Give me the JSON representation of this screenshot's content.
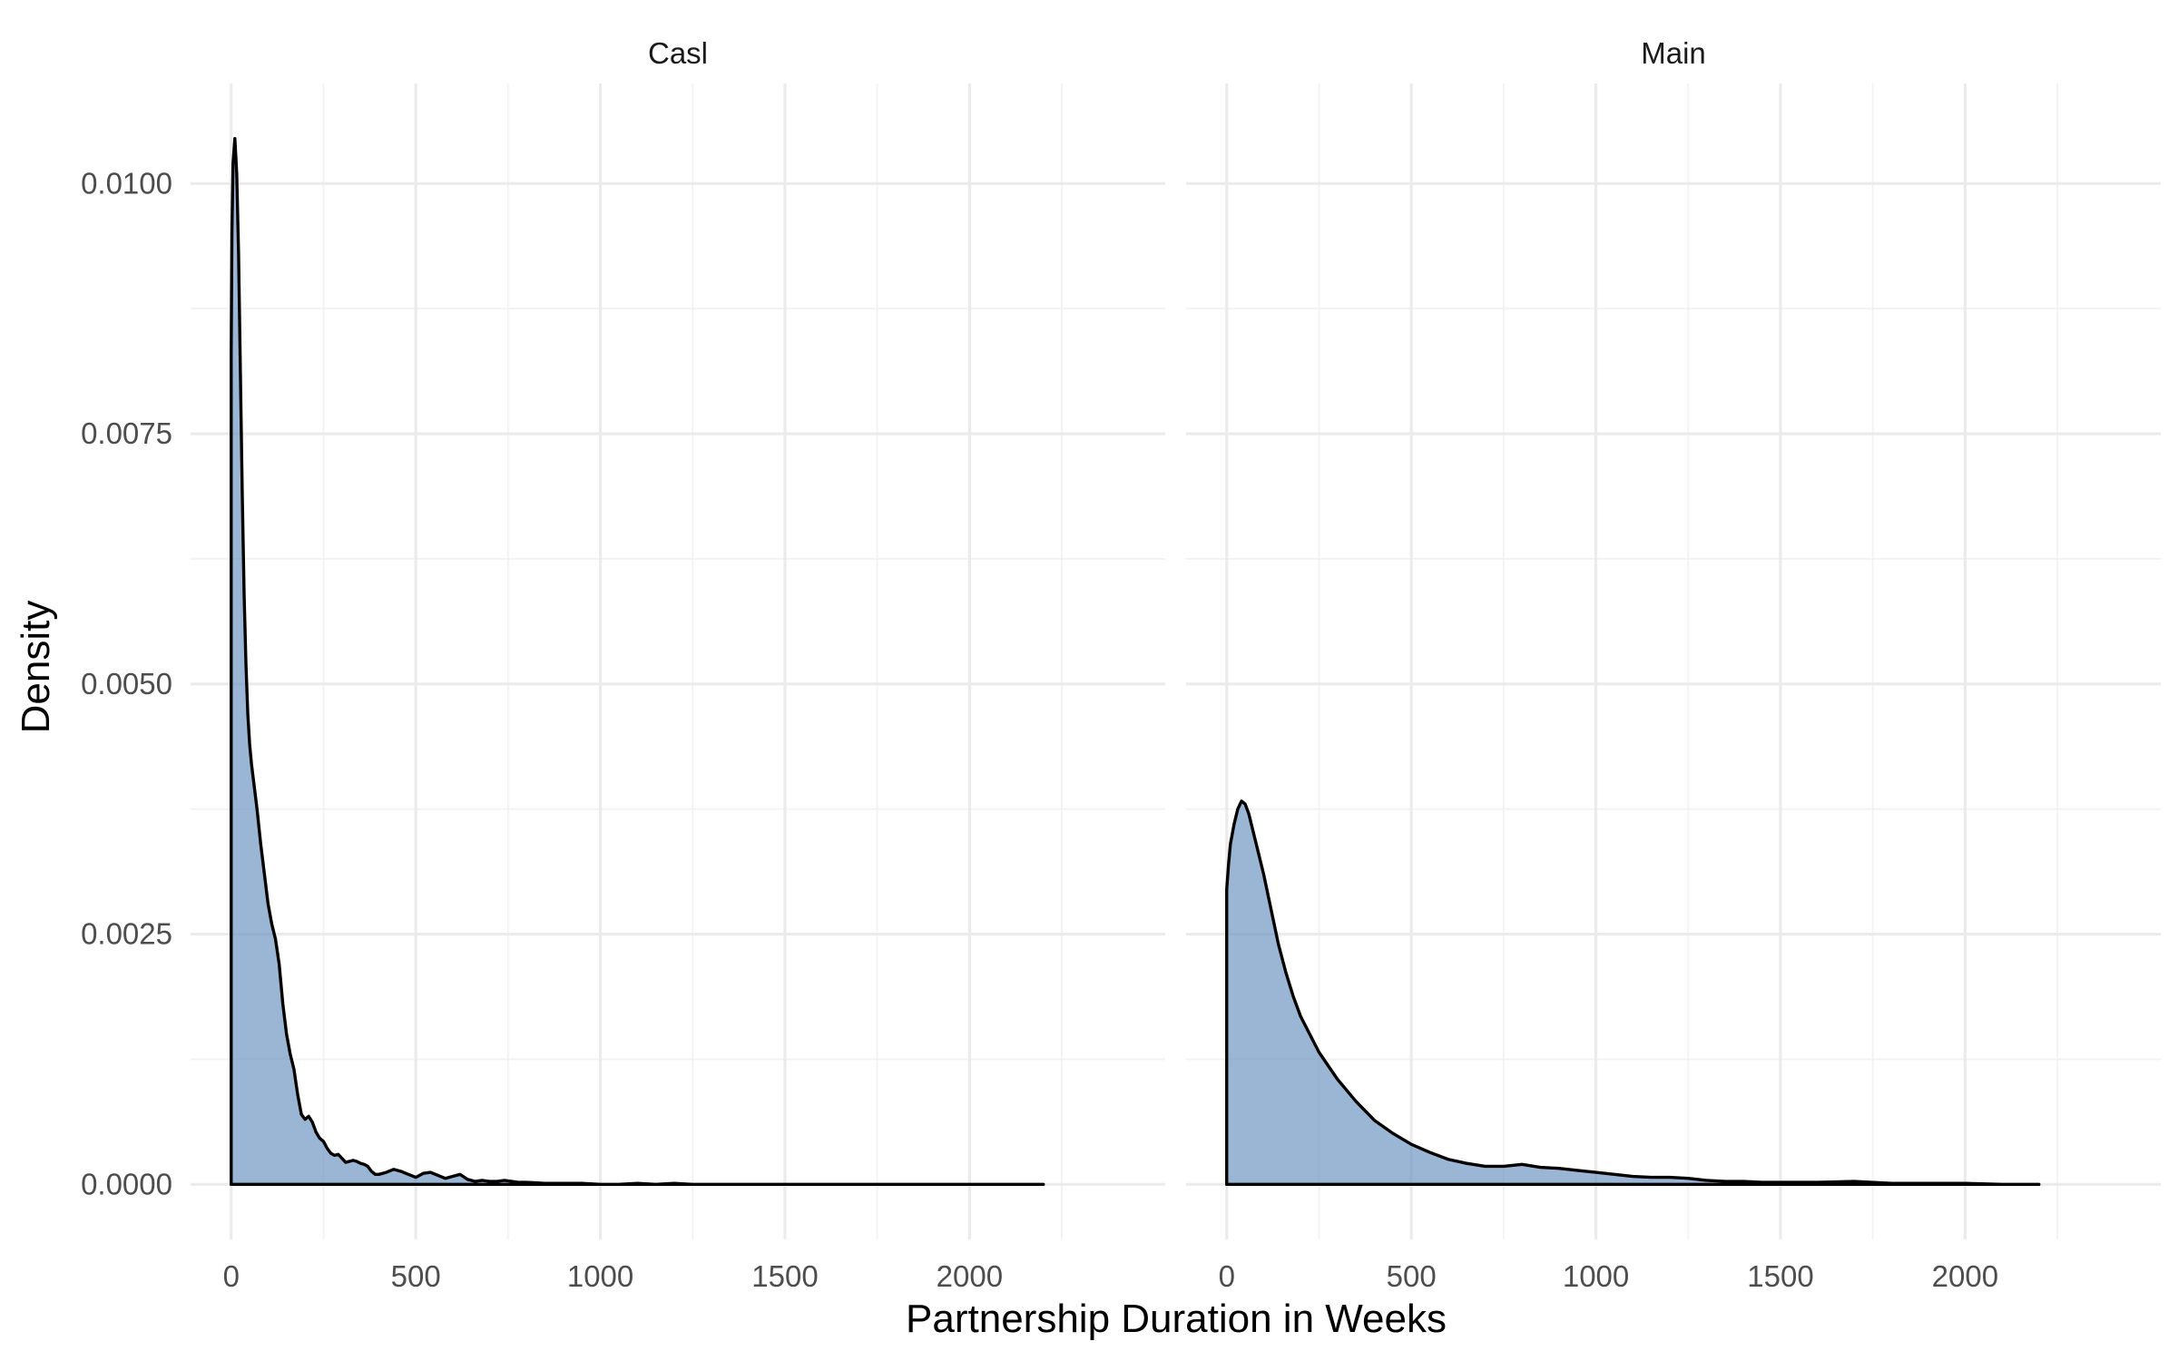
{
  "chart_data": {
    "type": "area",
    "xlabel": "Partnership Duration in Weeks",
    "ylabel": "Density",
    "xlim": [
      -110,
      2530
    ],
    "ylim": [
      -0.00055,
      0.011
    ],
    "x_major_ticks": [
      0,
      500,
      1000,
      1500,
      2000
    ],
    "x_tick_labels": [
      "0",
      "500",
      "1000",
      "1500",
      "2000"
    ],
    "y_major_ticks": [
      0,
      0.0025,
      0.005,
      0.0075,
      0.01
    ],
    "y_tick_labels": [
      "0.0000",
      "0.0025",
      "0.0050",
      "0.0075",
      "0.0100"
    ],
    "grid": true,
    "fill_color": "#6b93c1",
    "fill_opacity": 0.68,
    "line_color": "#000000",
    "panels": [
      {
        "strip_label": "Casl",
        "x": [
          0,
          2,
          5,
          10,
          15,
          20,
          25,
          30,
          35,
          40,
          45,
          50,
          55,
          60,
          70,
          80,
          90,
          100,
          110,
          120,
          130,
          140,
          150,
          160,
          170,
          180,
          190,
          200,
          210,
          220,
          230,
          240,
          250,
          260,
          270,
          280,
          290,
          300,
          310,
          320,
          330,
          340,
          350,
          360,
          370,
          380,
          390,
          400,
          420,
          440,
          460,
          480,
          500,
          520,
          540,
          560,
          580,
          600,
          620,
          640,
          660,
          680,
          700,
          720,
          740,
          760,
          780,
          800,
          850,
          900,
          950,
          1000,
          1050,
          1100,
          1150,
          1200,
          1250,
          1300,
          1350,
          1400,
          1450,
          1500,
          1600,
          1700,
          1800,
          1900,
          2000,
          2100,
          2200
        ],
        "y": [
          0.0083,
          0.0095,
          0.0102,
          0.01045,
          0.0101,
          0.0093,
          0.0081,
          0.0069,
          0.0059,
          0.0052,
          0.0047,
          0.0044,
          0.0042,
          0.00405,
          0.00375,
          0.0034,
          0.0031,
          0.0028,
          0.0026,
          0.00245,
          0.0022,
          0.0018,
          0.0015,
          0.0013,
          0.00115,
          0.0009,
          0.0007,
          0.00065,
          0.00068,
          0.00062,
          0.00052,
          0.00046,
          0.00043,
          0.00036,
          0.00031,
          0.00029,
          0.0003,
          0.00026,
          0.00022,
          0.00023,
          0.00024,
          0.00023,
          0.00021,
          0.0002,
          0.00018,
          0.00013,
          0.0001,
          0.0001,
          0.00012,
          0.00015,
          0.00013,
          0.0001,
          7e-05,
          0.00011,
          0.00012,
          9e-05,
          6e-05,
          8e-05,
          0.0001,
          5e-05,
          3e-05,
          4e-05,
          3e-05,
          3e-05,
          4e-05,
          3e-05,
          2e-05,
          2e-05,
          1e-05,
          1e-05,
          1e-05,
          0.0,
          0.0,
          1e-05,
          0.0,
          1e-05,
          0.0,
          0.0,
          0.0,
          0.0,
          0.0,
          0.0,
          0.0,
          0.0,
          0.0,
          0.0,
          0.0,
          0.0,
          0.0
        ]
      },
      {
        "strip_label": "Main",
        "x": [
          0,
          5,
          10,
          20,
          30,
          40,
          50,
          60,
          70,
          80,
          100,
          120,
          140,
          160,
          180,
          200,
          250,
          300,
          350,
          400,
          450,
          500,
          550,
          600,
          650,
          700,
          750,
          800,
          850,
          900,
          950,
          1000,
          1050,
          1100,
          1150,
          1200,
          1250,
          1300,
          1350,
          1400,
          1450,
          1500,
          1600,
          1700,
          1800,
          1900,
          2000,
          2100,
          2200
        ],
        "y": [
          0.00295,
          0.0032,
          0.0034,
          0.0036,
          0.00375,
          0.00383,
          0.0038,
          0.0037,
          0.00355,
          0.0034,
          0.0031,
          0.00275,
          0.0024,
          0.00212,
          0.00188,
          0.00168,
          0.00132,
          0.00105,
          0.00083,
          0.00064,
          0.00051,
          0.0004,
          0.00032,
          0.00025,
          0.00021,
          0.00018,
          0.00018,
          0.0002,
          0.00017,
          0.00016,
          0.00014,
          0.00012,
          0.0001,
          8e-05,
          7e-05,
          7e-05,
          6e-05,
          4e-05,
          3e-05,
          3e-05,
          2e-05,
          2e-05,
          2e-05,
          3e-05,
          1e-05,
          1e-05,
          1e-05,
          0.0,
          0.0
        ]
      }
    ]
  }
}
